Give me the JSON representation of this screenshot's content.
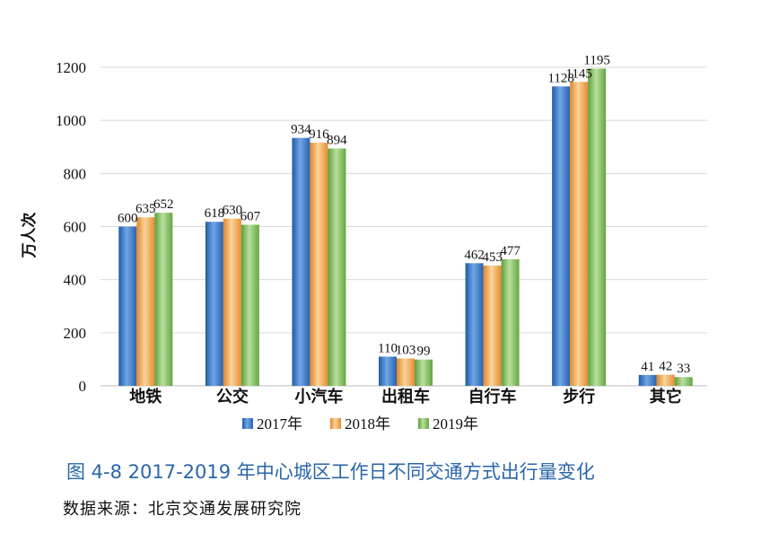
{
  "chart_data": {
    "type": "bar",
    "ylabel": "万人次",
    "xlabel": "",
    "ylim": [
      0,
      1200
    ],
    "yticks": [
      0,
      200,
      400,
      600,
      800,
      1000,
      1200
    ],
    "grid": true,
    "legend_position": "bottom",
    "categories": [
      "地铁",
      "公交",
      "小汽车",
      "出租车",
      "自行车",
      "步行",
      "其它"
    ],
    "series": [
      {
        "name": "2017年",
        "color": "#3a78c4",
        "values": [
          600,
          618,
          934,
          110,
          462,
          1128,
          41
        ]
      },
      {
        "name": "2018年",
        "color": "#f0a24a",
        "values": [
          635,
          630,
          916,
          103,
          453,
          1145,
          42
        ]
      },
      {
        "name": "2019年",
        "color": "#7db85c",
        "values": [
          652,
          607,
          894,
          99,
          477,
          1195,
          33
        ]
      }
    ]
  },
  "caption": "图 4-8 2017-2019 年中心城区工作日不同交通方式出行量变化",
  "source": "数据来源：北京交通发展研究院"
}
